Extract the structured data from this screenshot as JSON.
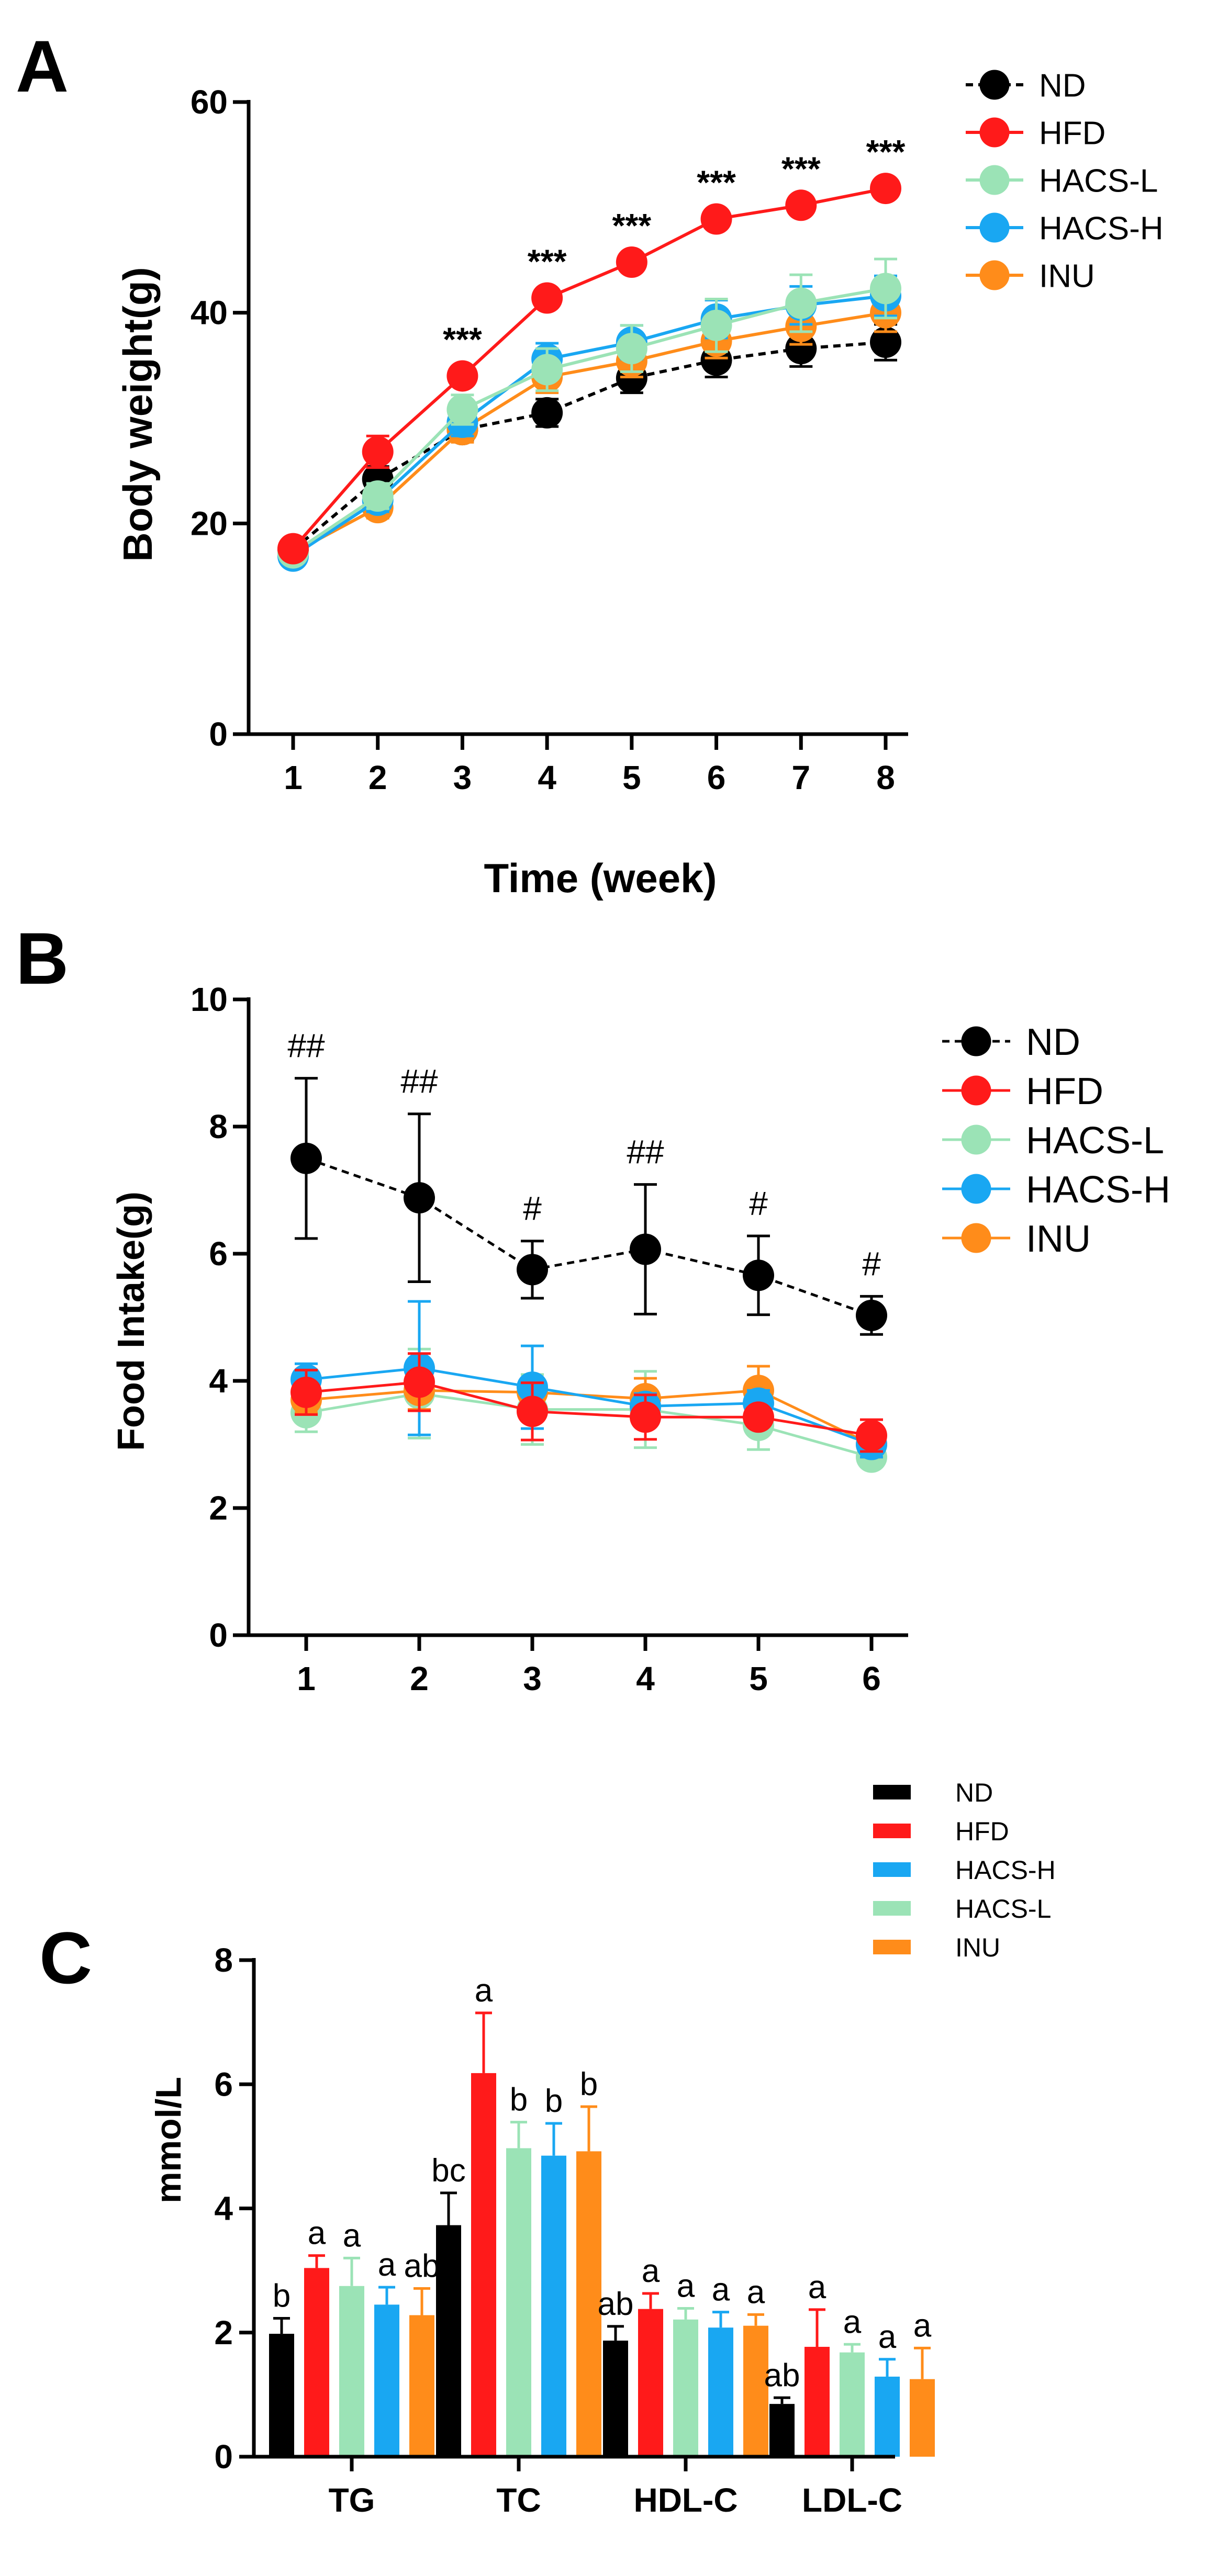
{
  "colors": {
    "ND": "#000000",
    "HFD": "#ff1a1a",
    "HACS-L": "#9be3b6",
    "HACS-H": "#19a7f2",
    "INU": "#ff8c1a"
  },
  "chart_data": [
    {
      "panel": "A",
      "type": "line",
      "title": "",
      "xlabel": "Time (week)",
      "ylabel": "Body weight(g)",
      "ylim": [
        0,
        60
      ],
      "yticks": [
        0,
        20,
        40,
        60
      ],
      "x": [
        1,
        2,
        3,
        4,
        5,
        6,
        7,
        8
      ],
      "series": [
        {
          "name": "ND",
          "dashed": true,
          "values": [
            17.5,
            24.2,
            28.9,
            30.5,
            33.8,
            35.5,
            36.6,
            37.2
          ],
          "errors": [
            0.8,
            1.2,
            1.0,
            1.3,
            1.4,
            1.6,
            1.7,
            1.7
          ]
        },
        {
          "name": "HFD",
          "dashed": false,
          "values": [
            17.6,
            26.8,
            34.0,
            41.4,
            44.8,
            48.9,
            50.2,
            51.8
          ],
          "errors": [
            0.8,
            1.5,
            0.0,
            0.0,
            0.0,
            0.0,
            0.0,
            0.0
          ]
        },
        {
          "name": "HACS-L",
          "dashed": false,
          "values": [
            17.2,
            22.6,
            30.8,
            34.6,
            36.6,
            38.8,
            40.9,
            42.3
          ],
          "errors": [
            0.9,
            1.2,
            1.4,
            2.0,
            2.2,
            2.5,
            2.7,
            2.8
          ]
        },
        {
          "name": "HACS-H",
          "dashed": false,
          "values": [
            16.9,
            22.2,
            29.6,
            35.6,
            37.2,
            39.4,
            40.7,
            41.6
          ],
          "errors": [
            0.6,
            1.1,
            1.3,
            1.5,
            1.6,
            1.8,
            1.8,
            1.9
          ]
        },
        {
          "name": "INU",
          "dashed": false,
          "values": [
            17.2,
            21.5,
            28.9,
            33.9,
            35.4,
            37.3,
            38.7,
            40.0
          ],
          "errors": [
            0.6,
            1.0,
            1.2,
            1.5,
            1.5,
            1.6,
            1.7,
            1.8
          ]
        }
      ],
      "annotations": [
        {
          "x": 3,
          "text": "***"
        },
        {
          "x": 4,
          "text": "***"
        },
        {
          "x": 5,
          "text": "***"
        },
        {
          "x": 6,
          "text": "***"
        },
        {
          "x": 7,
          "text": "***"
        },
        {
          "x": 8,
          "text": "***"
        }
      ],
      "legend": "top-right"
    },
    {
      "panel": "B",
      "type": "line",
      "title": "",
      "xlabel": "",
      "ylabel": "Food Intake(g)",
      "ylim": [
        0,
        10
      ],
      "yticks": [
        0,
        2,
        4,
        6,
        8,
        10
      ],
      "x": [
        1,
        2,
        3,
        4,
        5,
        6
      ],
      "series": [
        {
          "name": "ND",
          "dashed": true,
          "values": [
            7.5,
            6.88,
            5.75,
            6.07,
            5.66,
            5.03
          ],
          "errors": [
            1.26,
            1.32,
            0.45,
            1.02,
            0.62,
            0.3
          ]
        },
        {
          "name": "HFD",
          "dashed": false,
          "values": [
            3.82,
            3.98,
            3.52,
            3.43,
            3.43,
            3.14
          ],
          "errors": [
            0.35,
            0.45,
            0.45,
            0.35,
            0.0,
            0.25
          ]
        },
        {
          "name": "HACS-L",
          "dashed": false,
          "values": [
            3.5,
            3.8,
            3.55,
            3.55,
            3.3,
            2.8
          ],
          "errors": [
            0.3,
            0.7,
            0.55,
            0.6,
            0.38,
            0.15
          ]
        },
        {
          "name": "HACS-H",
          "dashed": false,
          "values": [
            4.02,
            4.2,
            3.9,
            3.6,
            3.65,
            3.0
          ],
          "errors": [
            0.25,
            1.05,
            0.65,
            0.2,
            0.2,
            0.2
          ]
        },
        {
          "name": "INU",
          "dashed": false,
          "values": [
            3.7,
            3.85,
            3.82,
            3.72,
            3.85,
            3.0
          ],
          "errors": [
            0.2,
            0.3,
            0.2,
            0.32,
            0.38,
            0.2
          ]
        }
      ],
      "annotations": [
        {
          "x": 1,
          "text": "##"
        },
        {
          "x": 2,
          "text": "##"
        },
        {
          "x": 3,
          "text": "#"
        },
        {
          "x": 4,
          "text": "##"
        },
        {
          "x": 5,
          "text": "#"
        },
        {
          "x": 6,
          "text": "#"
        }
      ],
      "legend": "top-right"
    },
    {
      "panel": "C",
      "type": "bar",
      "title": "",
      "xlabel": "",
      "ylabel": "mmol/L",
      "ylim": [
        0,
        8
      ],
      "yticks": [
        0,
        2,
        4,
        6,
        8
      ],
      "categories": [
        "TG",
        "TC",
        "HDL-C",
        "LDL-C"
      ],
      "series": [
        {
          "name": "ND",
          "values": [
            1.98,
            3.73,
            1.87,
            0.85
          ],
          "errors": [
            0.25,
            0.52,
            0.23,
            0.1
          ],
          "labels": [
            "b",
            "bc",
            "ab",
            "ab"
          ]
        },
        {
          "name": "HFD",
          "values": [
            3.04,
            6.18,
            2.38,
            1.77
          ],
          "errors": [
            0.2,
            0.97,
            0.25,
            0.6
          ],
          "labels": [
            "a",
            "a",
            "a",
            "a"
          ]
        },
        {
          "name": "HACS-L",
          "values": [
            2.75,
            4.97,
            2.21,
            1.68
          ],
          "errors": [
            0.45,
            0.42,
            0.18,
            0.13
          ],
          "labels": [
            "a",
            "b",
            "a",
            "a"
          ]
        },
        {
          "name": "HACS-H",
          "values": [
            2.45,
            4.85,
            2.08,
            1.29
          ],
          "errors": [
            0.28,
            0.52,
            0.25,
            0.28
          ],
          "labels": [
            "a",
            "b",
            "a",
            "a"
          ]
        },
        {
          "name": "INU",
          "values": [
            2.28,
            4.92,
            2.11,
            1.25
          ],
          "errors": [
            0.43,
            0.72,
            0.18,
            0.5
          ],
          "labels": [
            "ab",
            "b",
            "a",
            "a"
          ]
        }
      ],
      "legend_order": [
        "ND",
        "HFD",
        "HACS-H",
        "HACS-L",
        "INU"
      ],
      "legend": "top-right"
    }
  ]
}
